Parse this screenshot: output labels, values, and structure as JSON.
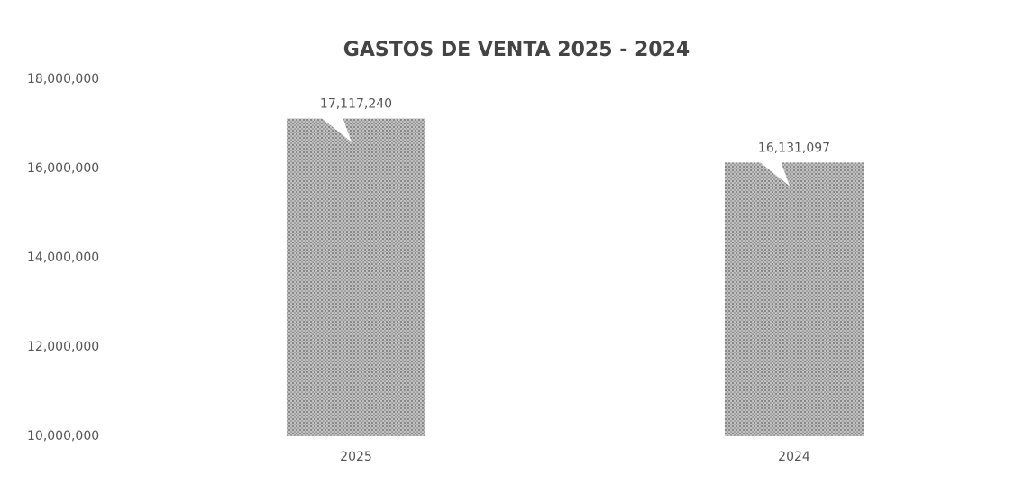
{
  "chart_data": {
    "type": "bar",
    "title": "GASTOS DE VENTA 2025 - 2024",
    "categories": [
      "2025",
      "2024"
    ],
    "values": [
      17117240,
      16131097
    ],
    "value_labels": [
      "17,117,240",
      "16,131,097"
    ],
    "color": "#9a9a9a",
    "ylim": [
      10000000,
      18000000
    ],
    "yticks": [
      {
        "value": 10000000,
        "label": "10,000,000"
      },
      {
        "value": 12000000,
        "label": "12,000,000"
      },
      {
        "value": 14000000,
        "label": "14,000,000"
      },
      {
        "value": 16000000,
        "label": "16,000,000"
      },
      {
        "value": 18000000,
        "label": "18,000,000"
      }
    ],
    "grid": false
  }
}
